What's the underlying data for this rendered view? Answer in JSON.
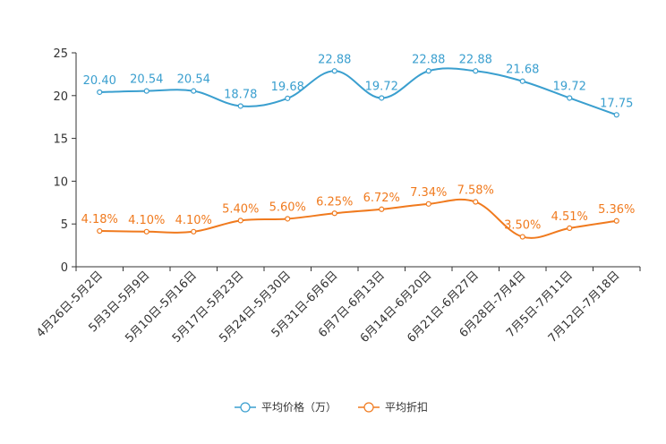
{
  "chart_data": {
    "type": "line",
    "categories": [
      "4月26日-5月2日",
      "5月3日-5月9日",
      "5月10日-5月16日",
      "5月17日-5月23日",
      "5月24日-5月30日",
      "5月31日-6月6日",
      "6月7日-6月13日",
      "6月14日-6月20日",
      "6月21日-6月27日",
      "6月28日-7月4日",
      "7月5日-7月11日",
      "7月12日-7月18日"
    ],
    "ylim": [
      0,
      25
    ],
    "yticks": [
      0,
      5,
      10,
      15,
      20,
      25
    ],
    "series": [
      {
        "name": "平均价格（万）",
        "color": "#3a9fcf",
        "values": [
          20.4,
          20.54,
          20.54,
          18.78,
          19.68,
          22.88,
          19.72,
          22.88,
          22.88,
          21.68,
          19.72,
          17.75
        ],
        "labels": [
          "20.40",
          "20.54",
          "20.54",
          "18.78",
          "19.68",
          "22.88",
          "19.72",
          "22.88",
          "22.88",
          "21.68",
          "19.72",
          "17.75"
        ]
      },
      {
        "name": "平均折扣",
        "color": "#f07a1e",
        "values": [
          4.18,
          4.1,
          4.1,
          5.4,
          5.6,
          6.25,
          6.72,
          7.34,
          7.58,
          3.5,
          4.51,
          5.36
        ],
        "labels": [
          "4.18%",
          "4.10%",
          "4.10%",
          "5.40%",
          "5.60%",
          "6.25%",
          "6.72%",
          "7.34%",
          "7.58%",
          "3.50%",
          "4.51%",
          "5.36%"
        ]
      }
    ],
    "legend_position": "bottom-center"
  }
}
